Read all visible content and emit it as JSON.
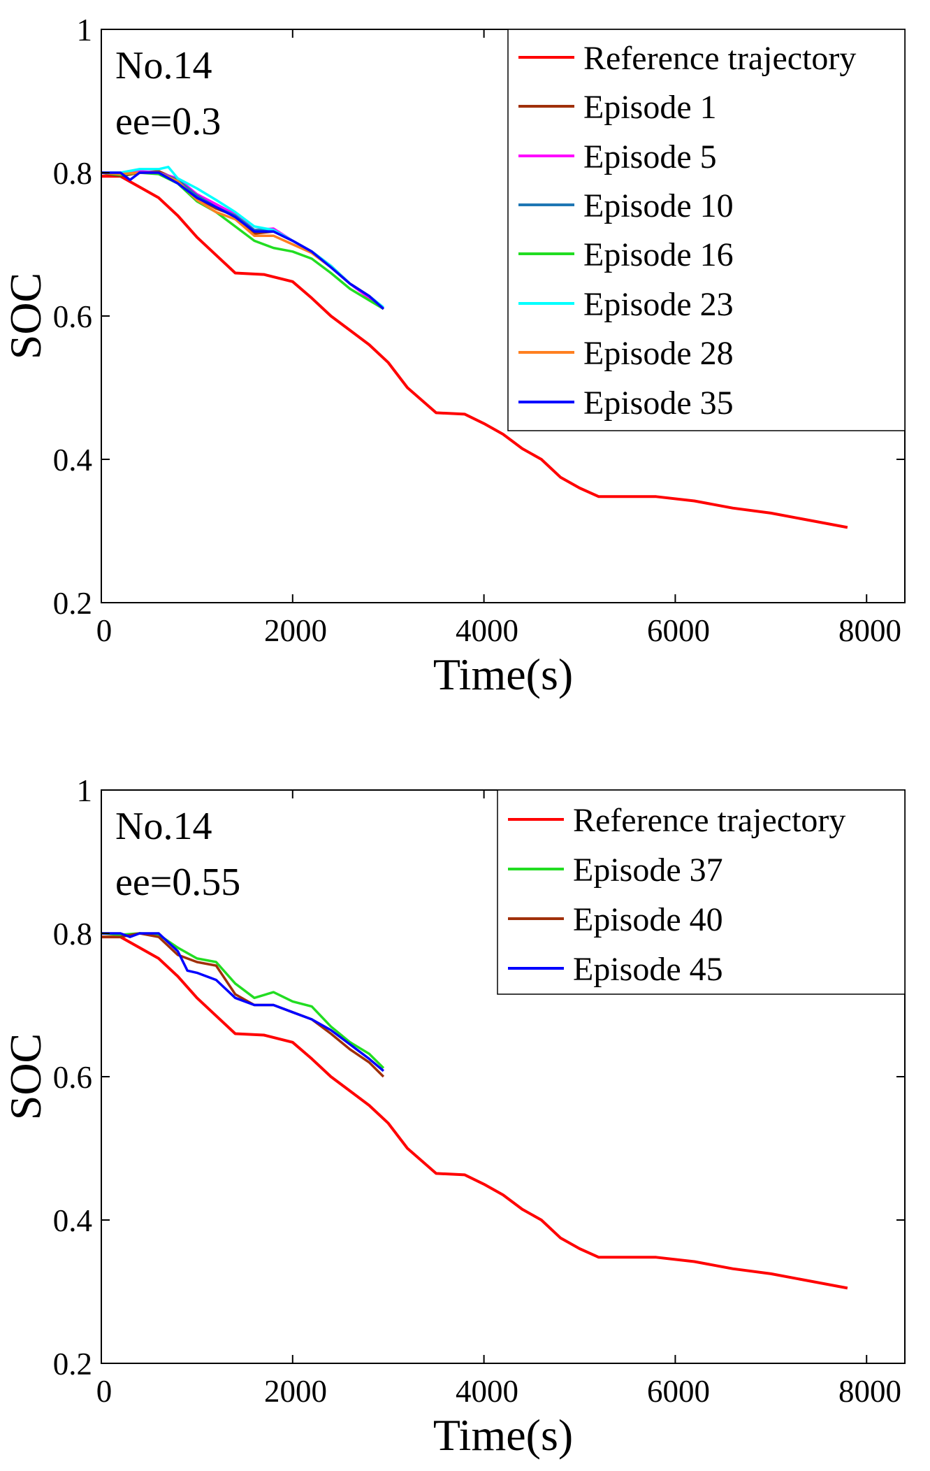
{
  "chart_data": [
    {
      "type": "line",
      "title": "",
      "xlabel": "Time(s)",
      "ylabel": "SOC",
      "xlim": [
        0,
        8400
      ],
      "ylim": [
        0.2,
        1
      ],
      "xticks": [
        0,
        2000,
        4000,
        6000,
        8000
      ],
      "xtick_labels": [
        "0",
        "2000",
        "4000",
        "6000",
        "8000"
      ],
      "yticks": [
        0.2,
        0.4,
        0.6,
        0.8,
        1
      ],
      "ytick_labels": [
        "0.2",
        "0.4",
        "0.6",
        "0.8",
        "1"
      ],
      "annotations": [
        "No.14",
        "ee=0.3"
      ],
      "legend_position": "top-right",
      "series": [
        {
          "name": "Reference trajectory",
          "color": "#ff0000",
          "x": [
            0,
            200,
            400,
            600,
            800,
            1000,
            1200,
            1400,
            1700,
            2000,
            2200,
            2400,
            2600,
            2800,
            3000,
            3200,
            3500,
            3800,
            4000,
            4200,
            4400,
            4600,
            4800,
            5000,
            5200,
            5500,
            5800,
            6200,
            6600,
            7000,
            7400,
            7800
          ],
          "y": [
            0.795,
            0.795,
            0.78,
            0.765,
            0.74,
            0.71,
            0.685,
            0.66,
            0.658,
            0.648,
            0.625,
            0.6,
            0.58,
            0.56,
            0.535,
            0.5,
            0.465,
            0.463,
            0.45,
            0.435,
            0.415,
            0.4,
            0.375,
            0.36,
            0.348,
            0.348,
            0.348,
            0.342,
            0.332,
            0.325,
            0.315,
            0.305
          ]
        },
        {
          "name": "Episode 1",
          "color": "#a0300a",
          "x": [
            0,
            200,
            400,
            600,
            800,
            1000,
            1200,
            1400,
            1600,
            1800,
            2000,
            2200,
            2400,
            2600,
            2800,
            2950
          ],
          "y": [
            0.8,
            0.795,
            0.8,
            0.802,
            0.79,
            0.765,
            0.75,
            0.74,
            0.715,
            0.718,
            0.705,
            0.69,
            0.67,
            0.645,
            0.628,
            0.61
          ]
        },
        {
          "name": "Episode 5",
          "color": "#ff00ff",
          "x": [
            0,
            200,
            400,
            600,
            800,
            1000,
            1200,
            1400,
            1600,
            1800,
            2000,
            2200,
            2400,
            2600,
            2800,
            2950
          ],
          "y": [
            0.8,
            0.798,
            0.802,
            0.8,
            0.792,
            0.77,
            0.756,
            0.742,
            0.72,
            0.722,
            0.705,
            0.69,
            0.668,
            0.645,
            0.625,
            0.61
          ]
        },
        {
          "name": "Episode 10",
          "color": "#1f77b4",
          "x": [
            0,
            200,
            400,
            600,
            800,
            1000,
            1200,
            1400,
            1600,
            1800,
            2000,
            2200,
            2400,
            2600,
            2800,
            2950
          ],
          "y": [
            0.8,
            0.798,
            0.8,
            0.8,
            0.79,
            0.768,
            0.752,
            0.74,
            0.72,
            0.72,
            0.705,
            0.69,
            0.67,
            0.645,
            0.628,
            0.61
          ]
        },
        {
          "name": "Episode 16",
          "color": "#22dd22",
          "x": [
            0,
            200,
            400,
            600,
            800,
            1000,
            1200,
            1400,
            1600,
            1800,
            2000,
            2200,
            2400,
            2600,
            2800,
            2950
          ],
          "y": [
            0.8,
            0.797,
            0.8,
            0.798,
            0.785,
            0.76,
            0.745,
            0.725,
            0.705,
            0.695,
            0.69,
            0.68,
            0.66,
            0.638,
            0.622,
            0.61
          ]
        },
        {
          "name": "Episode 23",
          "color": "#00ffff",
          "x": [
            0,
            200,
            400,
            600,
            700,
            800,
            1000,
            1200,
            1400,
            1600,
            1800,
            2000,
            2200,
            2400,
            2600,
            2800,
            2950
          ],
          "y": [
            0.8,
            0.8,
            0.805,
            0.805,
            0.808,
            0.792,
            0.778,
            0.762,
            0.745,
            0.725,
            0.72,
            0.705,
            0.69,
            0.67,
            0.645,
            0.628,
            0.612
          ]
        },
        {
          "name": "Episode 28",
          "color": "#ff8020",
          "x": [
            0,
            200,
            400,
            600,
            800,
            1000,
            1200,
            1400,
            1600,
            1800,
            2000,
            2200,
            2400,
            2600,
            2800,
            2950
          ],
          "y": [
            0.8,
            0.798,
            0.8,
            0.8,
            0.788,
            0.762,
            0.745,
            0.735,
            0.712,
            0.712,
            0.7,
            0.688,
            0.668,
            0.645,
            0.628,
            0.61
          ]
        },
        {
          "name": "Episode 35",
          "color": "#0000ff",
          "x": [
            0,
            200,
            300,
            400,
            600,
            800,
            1000,
            1200,
            1400,
            1600,
            1800,
            2000,
            2200,
            2400,
            2600,
            2800,
            2950
          ],
          "y": [
            0.8,
            0.8,
            0.79,
            0.8,
            0.8,
            0.785,
            0.765,
            0.752,
            0.738,
            0.718,
            0.718,
            0.705,
            0.69,
            0.668,
            0.645,
            0.628,
            0.61
          ]
        }
      ]
    },
    {
      "type": "line",
      "title": "",
      "xlabel": "Time(s)",
      "ylabel": "SOC",
      "xlim": [
        0,
        8400
      ],
      "ylim": [
        0.2,
        1
      ],
      "xticks": [
        0,
        2000,
        4000,
        6000,
        8000
      ],
      "xtick_labels": [
        "0",
        "2000",
        "4000",
        "6000",
        "8000"
      ],
      "yticks": [
        0.2,
        0.4,
        0.6,
        0.8,
        1
      ],
      "ytick_labels": [
        "0.2",
        "0.4",
        "0.6",
        "0.8",
        "1"
      ],
      "annotations": [
        "No.14",
        "ee=0.55"
      ],
      "legend_position": "top-right",
      "series": [
        {
          "name": "Reference trajectory",
          "color": "#ff0000",
          "x": [
            0,
            200,
            400,
            600,
            800,
            1000,
            1200,
            1400,
            1700,
            2000,
            2200,
            2400,
            2600,
            2800,
            3000,
            3200,
            3500,
            3800,
            4000,
            4200,
            4400,
            4600,
            4800,
            5000,
            5200,
            5500,
            5800,
            6200,
            6600,
            7000,
            7400,
            7800
          ],
          "y": [
            0.795,
            0.795,
            0.78,
            0.765,
            0.74,
            0.71,
            0.685,
            0.66,
            0.658,
            0.648,
            0.625,
            0.6,
            0.58,
            0.56,
            0.535,
            0.5,
            0.465,
            0.463,
            0.45,
            0.435,
            0.415,
            0.4,
            0.375,
            0.36,
            0.348,
            0.348,
            0.348,
            0.342,
            0.332,
            0.325,
            0.315,
            0.305
          ]
        },
        {
          "name": "Episode 37",
          "color": "#22dd22",
          "x": [
            0,
            200,
            400,
            600,
            800,
            1000,
            1200,
            1400,
            1600,
            1800,
            2000,
            2200,
            2400,
            2600,
            2800,
            2950
          ],
          "y": [
            0.8,
            0.798,
            0.8,
            0.798,
            0.78,
            0.765,
            0.76,
            0.73,
            0.71,
            0.718,
            0.705,
            0.698,
            0.67,
            0.648,
            0.632,
            0.612
          ]
        },
        {
          "name": "Episode 40",
          "color": "#a0300a",
          "x": [
            0,
            200,
            400,
            600,
            800,
            1000,
            1200,
            1400,
            1600,
            1800,
            2000,
            2200,
            2400,
            2600,
            2800,
            2950
          ],
          "y": [
            0.795,
            0.795,
            0.8,
            0.795,
            0.77,
            0.76,
            0.755,
            0.715,
            0.7,
            0.7,
            0.69,
            0.68,
            0.66,
            0.638,
            0.62,
            0.6
          ]
        },
        {
          "name": "Episode 45",
          "color": "#0000ff",
          "x": [
            0,
            200,
            300,
            400,
            600,
            800,
            900,
            1000,
            1200,
            1400,
            1600,
            1800,
            2000,
            2200,
            2400,
            2600,
            2800,
            2950
          ],
          "y": [
            0.8,
            0.8,
            0.795,
            0.8,
            0.8,
            0.775,
            0.748,
            0.745,
            0.735,
            0.71,
            0.7,
            0.7,
            0.69,
            0.68,
            0.665,
            0.645,
            0.625,
            0.608
          ]
        }
      ]
    }
  ]
}
